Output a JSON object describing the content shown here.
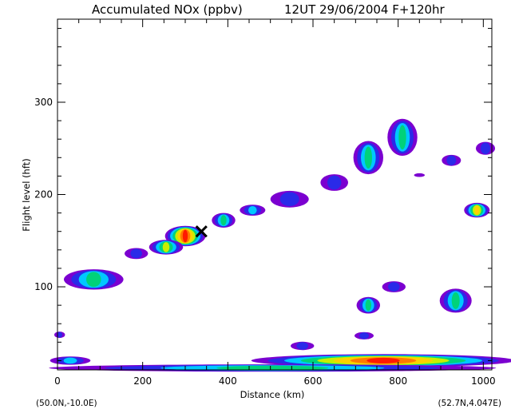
{
  "chart_data": {
    "type": "heatmap",
    "title": "Accumulated NOx  (ppbv)",
    "subtitle": "12UT 29/06/2004  F+120hr",
    "xlabel": "Distance  (km)",
    "ylabel": "Flight level  (hft)",
    "xlim": [
      0,
      1020
    ],
    "ylim": [
      10,
      390
    ],
    "x_ticks": [
      "0",
      "200",
      "400",
      "600",
      "800",
      "1000"
    ],
    "y_ticks": [
      "100",
      "200",
      "300"
    ],
    "start_label": "(50.0N,-10.0E)",
    "end_label": "(52.7N,4.047E)",
    "marker": {
      "symbol": "X",
      "x": 338,
      "y": 160
    },
    "colormap": [
      "#7b00d0",
      "#2a2ae8",
      "#00c8ff",
      "#00d27a",
      "#c8ee00",
      "#ffd000",
      "#ff7a00",
      "#ff1a00"
    ],
    "plumes": [
      {
        "x": 765,
        "y": 20,
        "w": 620,
        "h": 14,
        "peak": 0.96,
        "tail": 0.35
      },
      {
        "x": 505,
        "y": 12,
        "w": 1050,
        "h": 8,
        "peak": 0.42,
        "tail": 0.5
      },
      {
        "x": 30,
        "y": 20,
        "w": 95,
        "h": 9,
        "peak": 0.32,
        "tail": 0.6
      },
      {
        "x": 300,
        "y": 155,
        "w": 95,
        "h": 22,
        "peak": 0.98,
        "tail": 0.55
      },
      {
        "x": 255,
        "y": 143,
        "w": 80,
        "h": 16,
        "peak": 0.55,
        "tail": 0.6
      },
      {
        "x": 185,
        "y": 136,
        "w": 55,
        "h": 12,
        "peak": 0.22,
        "tail": 0.7
      },
      {
        "x": 390,
        "y": 172,
        "w": 55,
        "h": 16,
        "peak": 0.42,
        "tail": 0.6
      },
      {
        "x": 458,
        "y": 183,
        "w": 60,
        "h": 12,
        "peak": 0.3,
        "tail": 0.6
      },
      {
        "x": 545,
        "y": 195,
        "w": 90,
        "h": 18,
        "peak": 0.25,
        "tail": 0.7
      },
      {
        "x": 650,
        "y": 213,
        "w": 65,
        "h": 18,
        "peak": 0.25,
        "tail": 0.7
      },
      {
        "x": 730,
        "y": 240,
        "w": 70,
        "h": 36,
        "peak": 0.5,
        "tail": 0.55
      },
      {
        "x": 810,
        "y": 262,
        "w": 70,
        "h": 40,
        "peak": 0.5,
        "tail": 0.55
      },
      {
        "x": 85,
        "y": 108,
        "w": 140,
        "h": 22,
        "peak": 0.5,
        "tail": 0.65
      },
      {
        "x": 985,
        "y": 183,
        "w": 60,
        "h": 16,
        "peak": 0.7,
        "tail": 0.55
      },
      {
        "x": 935,
        "y": 85,
        "w": 75,
        "h": 26,
        "peak": 0.5,
        "tail": 0.6
      },
      {
        "x": 730,
        "y": 80,
        "w": 55,
        "h": 18,
        "peak": 0.45,
        "tail": 0.6
      },
      {
        "x": 790,
        "y": 100,
        "w": 55,
        "h": 12,
        "peak": 0.25,
        "tail": 0.7
      },
      {
        "x": 720,
        "y": 47,
        "w": 45,
        "h": 8,
        "peak": 0.15,
        "tail": 0.8
      },
      {
        "x": 575,
        "y": 36,
        "w": 55,
        "h": 9,
        "peak": 0.15,
        "tail": 0.8
      },
      {
        "x": 5,
        "y": 48,
        "w": 25,
        "h": 7,
        "peak": 0.15,
        "tail": 0.8
      },
      {
        "x": 925,
        "y": 237,
        "w": 45,
        "h": 12,
        "peak": 0.15,
        "tail": 0.8
      },
      {
        "x": 1005,
        "y": 250,
        "w": 45,
        "h": 14,
        "peak": 0.2,
        "tail": 0.8
      },
      {
        "x": 850,
        "y": 221,
        "w": 25,
        "h": 4,
        "peak": 0.12,
        "tail": 0.8
      }
    ]
  }
}
